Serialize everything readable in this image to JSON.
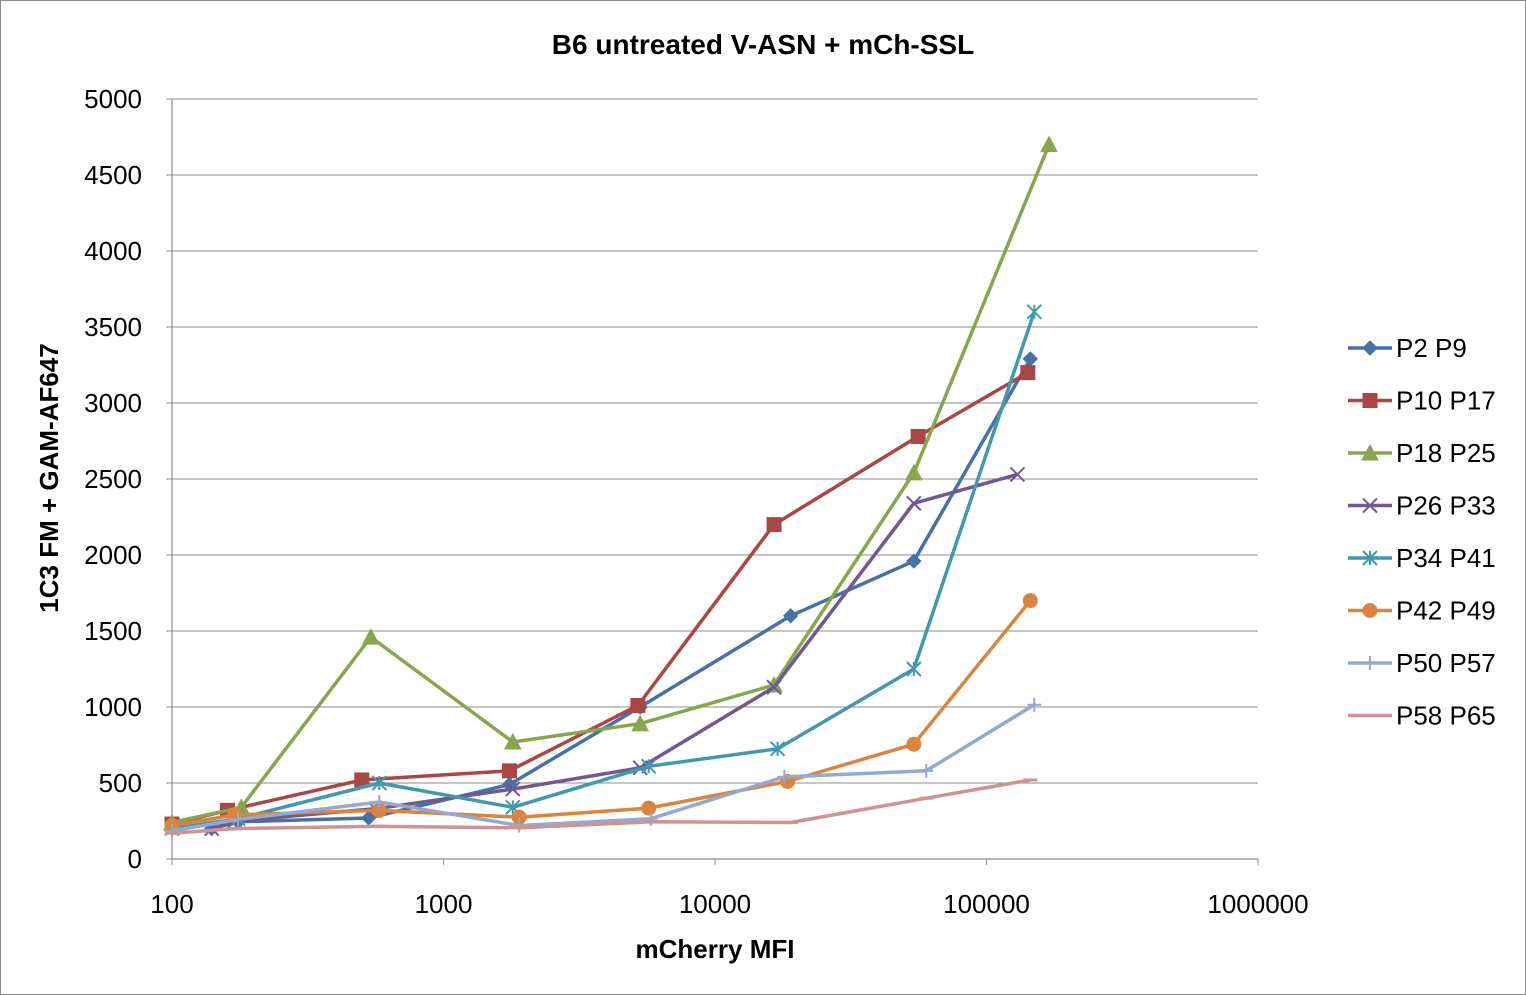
{
  "chart_data": {
    "type": "line",
    "title": "B6 untreated  V-ASN + mCh-SSL",
    "xlabel": "mCherry MFI",
    "ylabel": "1C3 FM + GAM-AF647",
    "x_scale": "log",
    "xlim": [
      100,
      1000000
    ],
    "ylim": [
      0,
      5000
    ],
    "x_ticks": [
      100,
      1000,
      10000,
      100000,
      1000000
    ],
    "x_tick_labels": [
      "100",
      "1000",
      "10000",
      "100000",
      "1000000"
    ],
    "y_ticks": [
      0,
      500,
      1000,
      1500,
      2000,
      2500,
      3000,
      3500,
      4000,
      4500,
      5000
    ],
    "y_tick_labels": [
      "0",
      "500",
      "1000",
      "1500",
      "2000",
      "2500",
      "3000",
      "3500",
      "4000",
      "4500",
      "5000"
    ],
    "grid": "horizontal",
    "legend_position": "right",
    "series": [
      {
        "name": "P2 P9",
        "color": "#4572a7",
        "marker": "diamond",
        "points": [
          [
            140,
            200
          ],
          [
            175,
            245
          ],
          [
            530,
            270
          ],
          [
            1750,
            490
          ],
          [
            5300,
            1000
          ],
          [
            19000,
            1600
          ],
          [
            54000,
            1960
          ],
          [
            145000,
            3290
          ]
        ]
      },
      {
        "name": "P10 P17",
        "color": "#aa4643",
        "marker": "square",
        "points": [
          [
            100,
            230
          ],
          [
            160,
            320
          ],
          [
            500,
            520
          ],
          [
            1750,
            580
          ],
          [
            5200,
            1010
          ],
          [
            16500,
            2200
          ],
          [
            56000,
            2780
          ],
          [
            142000,
            3200
          ]
        ]
      },
      {
        "name": "P18 P25",
        "color": "#89a54e",
        "marker": "triangle",
        "points": [
          [
            100,
            240
          ],
          [
            180,
            340
          ],
          [
            540,
            1460
          ],
          [
            1800,
            770
          ],
          [
            5300,
            890
          ],
          [
            16500,
            1145
          ],
          [
            54000,
            2540
          ],
          [
            170000,
            4700
          ]
        ]
      },
      {
        "name": "P26 P33",
        "color": "#71588f",
        "marker": "x",
        "points": [
          [
            140,
            200
          ],
          [
            170,
            250
          ],
          [
            560,
            330
          ],
          [
            1800,
            460
          ],
          [
            5300,
            600
          ],
          [
            16500,
            1130
          ],
          [
            54000,
            2340
          ],
          [
            130000,
            2530
          ]
        ]
      },
      {
        "name": "P34 P41",
        "color": "#4198af",
        "marker": "asterisk",
        "points": [
          [
            100,
            200
          ],
          [
            175,
            265
          ],
          [
            580,
            500
          ],
          [
            1800,
            340
          ],
          [
            5700,
            610
          ],
          [
            17000,
            725
          ],
          [
            54000,
            1250
          ],
          [
            150000,
            3600
          ]
        ]
      },
      {
        "name": "P42 P49",
        "color": "#db843d",
        "marker": "circle",
        "points": [
          [
            100,
            220
          ],
          [
            170,
            290
          ],
          [
            580,
            320
          ],
          [
            1900,
            275
          ],
          [
            5700,
            335
          ],
          [
            18500,
            510
          ],
          [
            54000,
            755
          ],
          [
            145000,
            1700
          ]
        ]
      },
      {
        "name": "P50 P57",
        "color": "#93a9cf",
        "marker": "plus",
        "points": [
          [
            100,
            185
          ],
          [
            175,
            260
          ],
          [
            580,
            375
          ],
          [
            1900,
            220
          ],
          [
            5800,
            265
          ],
          [
            18000,
            540
          ],
          [
            60000,
            580
          ],
          [
            150000,
            1015
          ]
        ]
      },
      {
        "name": "P58 P65",
        "color": "#d19392",
        "marker": "dash",
        "points": [
          [
            100,
            170
          ],
          [
            170,
            200
          ],
          [
            580,
            215
          ],
          [
            1900,
            205
          ],
          [
            5800,
            245
          ],
          [
            19000,
            240
          ],
          [
            60000,
            400
          ],
          [
            145000,
            520
          ]
        ]
      }
    ]
  }
}
